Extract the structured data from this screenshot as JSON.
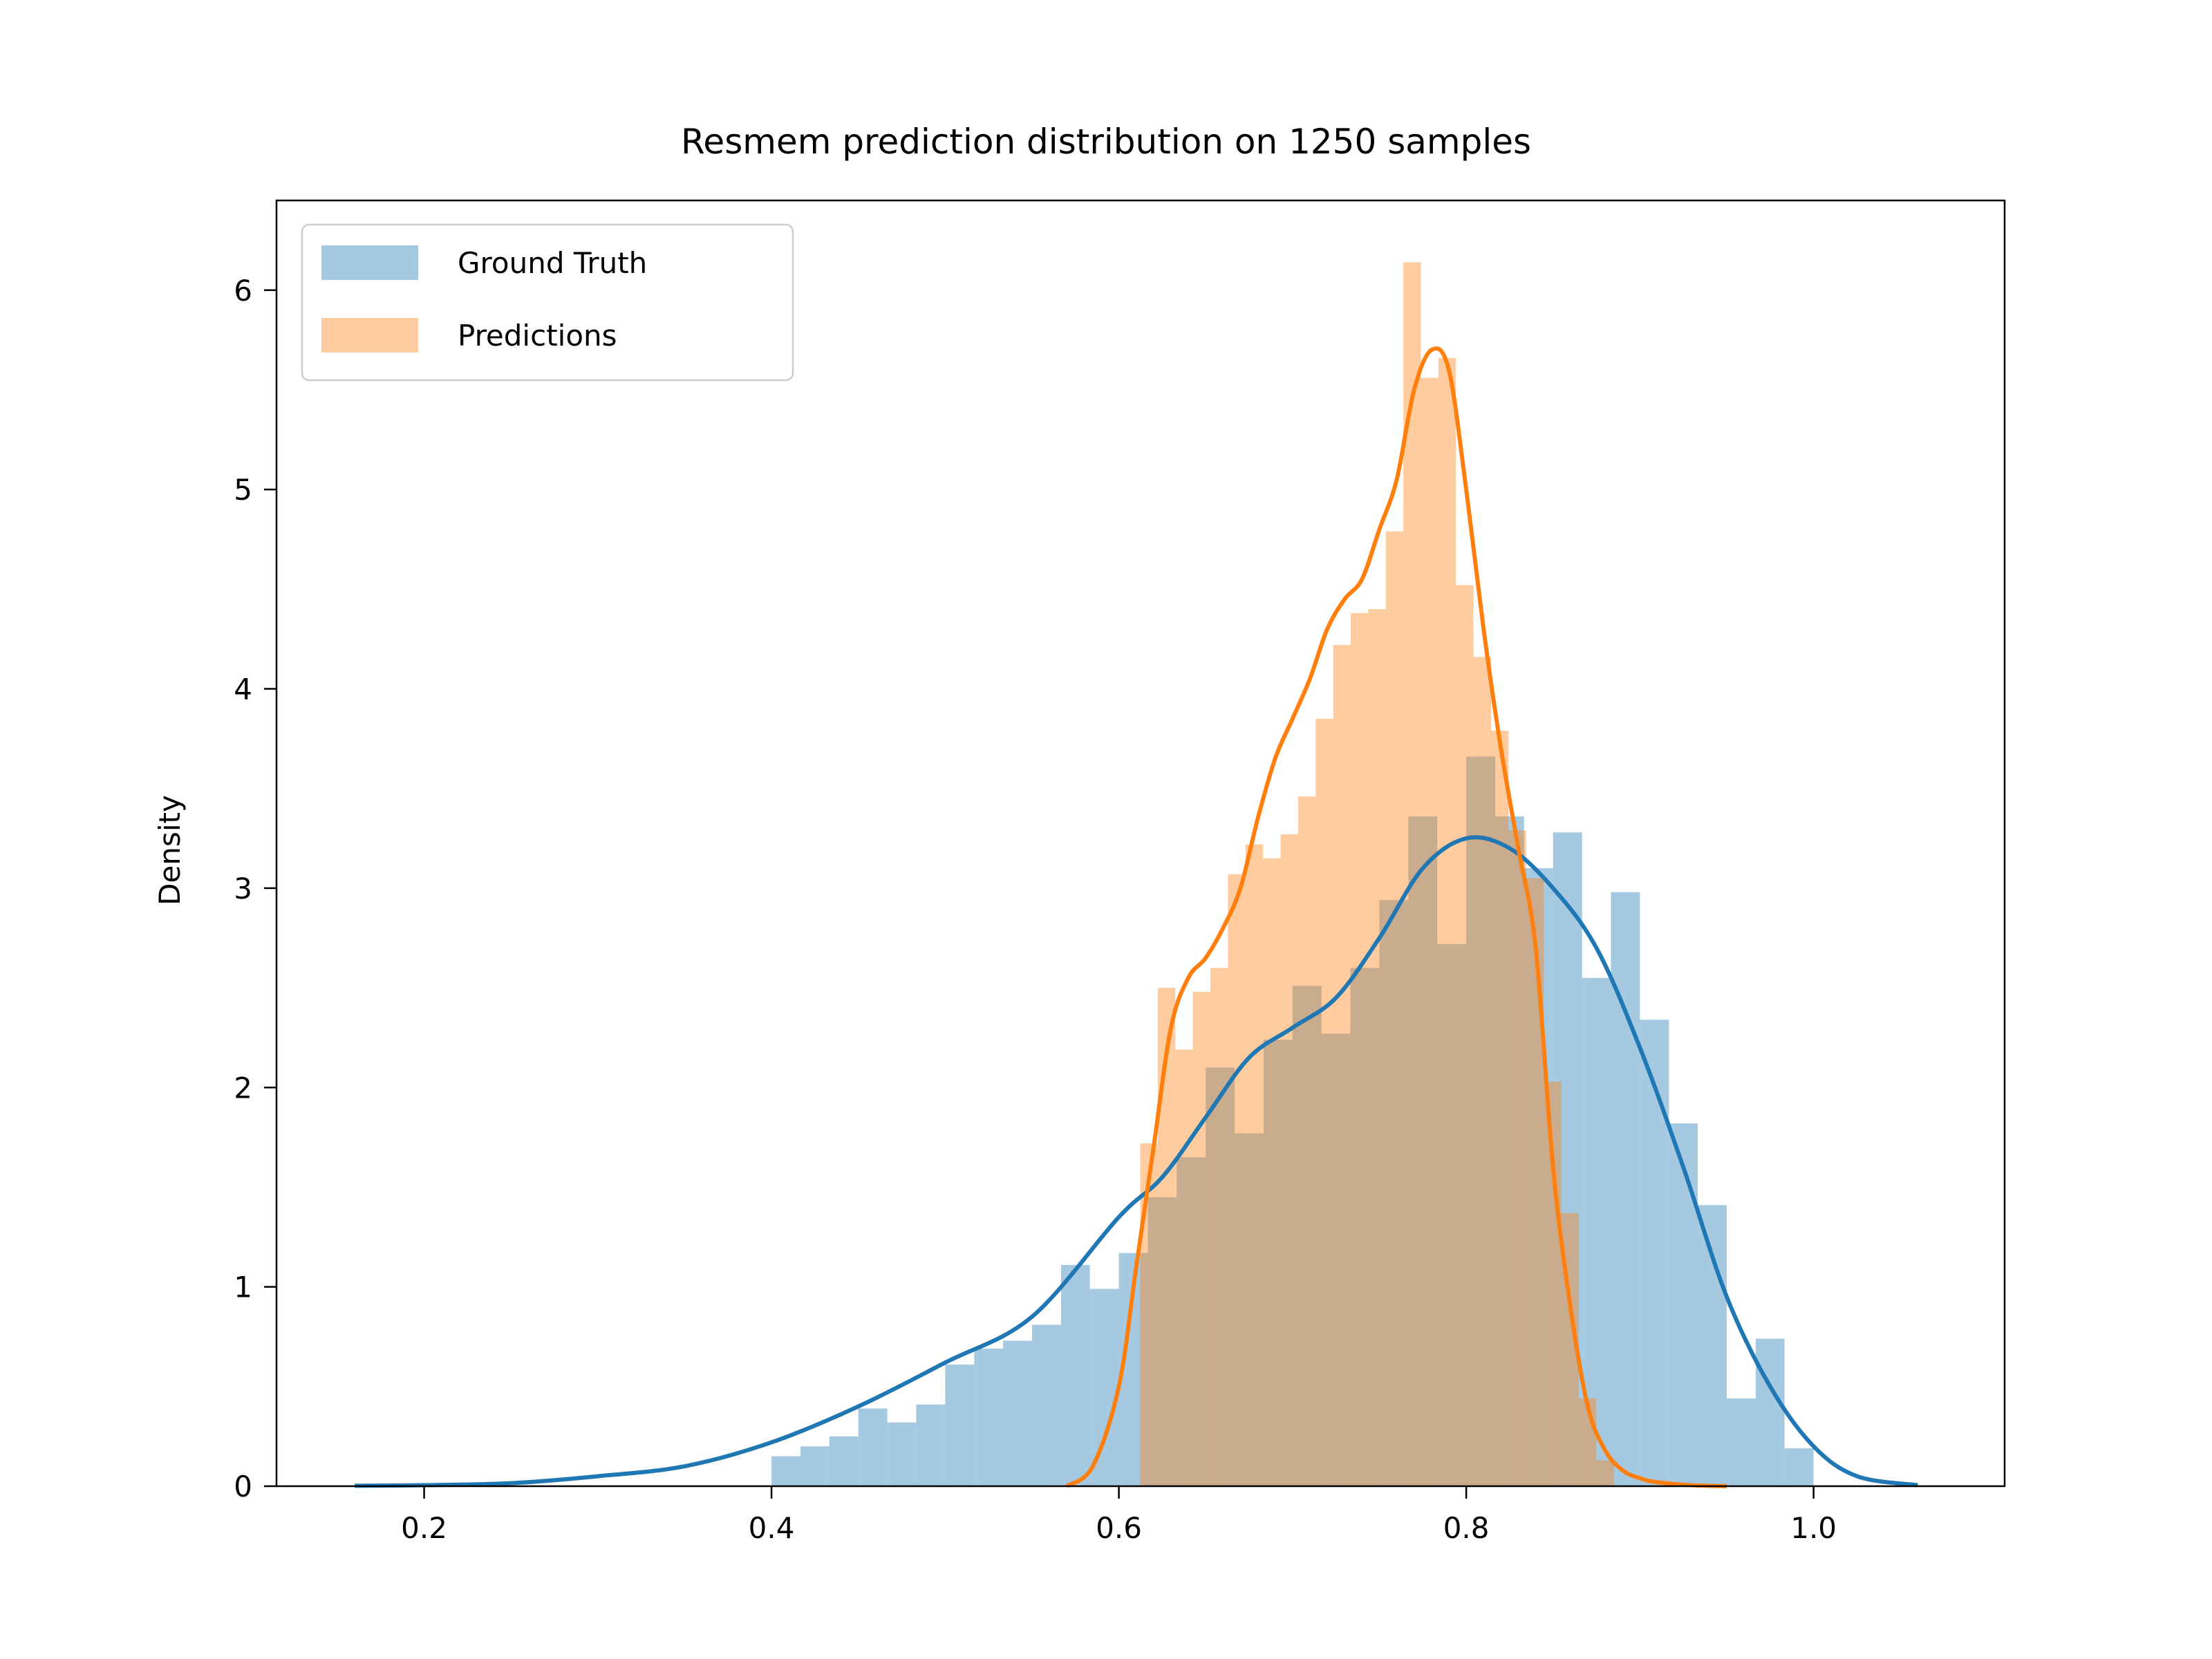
{
  "chart_data": {
    "type": "histogram",
    "title": "Resmem prediction distribution on 1250 samples",
    "xlabel": "",
    "ylabel": "Density",
    "xlim": [
      0.115,
      1.11
    ],
    "ylim": [
      0,
      6.45
    ],
    "xticks": [
      0.2,
      0.4,
      0.6,
      0.8,
      1.0
    ],
    "xtick_labels": [
      "0.2",
      "0.4",
      "0.6",
      "0.8",
      "1.0"
    ],
    "yticks": [
      0,
      1,
      2,
      3,
      4,
      5,
      6
    ],
    "ytick_labels": [
      "0",
      "1",
      "2",
      "3",
      "4",
      "5",
      "6"
    ],
    "grid": false,
    "legend_position": "upper-left",
    "series": [
      {
        "name": "Ground Truth",
        "color": "#1f77b4",
        "bin_edges": [
          0.4,
          0.4167,
          0.4333,
          0.45,
          0.4667,
          0.4833,
          0.5,
          0.5167,
          0.5333,
          0.55,
          0.5667,
          0.5833,
          0.6,
          0.6167,
          0.6333,
          0.65,
          0.6667,
          0.6833,
          0.7,
          0.7167,
          0.7333,
          0.75,
          0.7667,
          0.7833,
          0.8,
          0.8167,
          0.8333,
          0.85,
          0.8667,
          0.8833,
          0.9,
          0.9167,
          0.9333,
          0.95,
          0.9667,
          0.9833,
          1.0
        ],
        "heights": [
          0.15,
          0.2,
          0.25,
          0.39,
          0.32,
          0.41,
          0.61,
          0.69,
          0.73,
          0.81,
          1.11,
          0.99,
          1.17,
          1.45,
          1.65,
          2.1,
          1.77,
          2.24,
          2.51,
          2.27,
          2.6,
          2.94,
          3.36,
          2.72,
          3.66,
          3.36,
          3.1,
          3.28,
          2.55,
          2.98,
          2.34,
          1.82,
          1.41,
          0.44,
          0.74,
          0.19
        ]
      },
      {
        "name": "Predictions",
        "color": "#ff7f0e",
        "bin_edges": [
          0.6123,
          0.6224,
          0.6325,
          0.6426,
          0.6527,
          0.6628,
          0.6729,
          0.683,
          0.6931,
          0.7032,
          0.7133,
          0.7234,
          0.7335,
          0.7436,
          0.7537,
          0.7638,
          0.7739,
          0.784,
          0.7941,
          0.8042,
          0.8143,
          0.8244,
          0.8345,
          0.8446,
          0.8547,
          0.8648,
          0.8749,
          0.885
        ],
        "heights": [
          1.72,
          2.5,
          2.19,
          2.48,
          2.6,
          3.07,
          3.22,
          3.15,
          3.27,
          3.46,
          3.85,
          4.22,
          4.38,
          4.4,
          4.79,
          6.14,
          5.56,
          5.66,
          4.52,
          4.16,
          3.79,
          3.29,
          3.05,
          2.03,
          1.37,
          0.44,
          0.13
        ]
      }
    ],
    "kde": [
      {
        "name": "Ground Truth",
        "color": "#1f77b4",
        "x": [
          0.16,
          0.2,
          0.25,
          0.3,
          0.35,
          0.4,
          0.45,
          0.5,
          0.55,
          0.6,
          0.625,
          0.65,
          0.675,
          0.7,
          0.725,
          0.75,
          0.775,
          0.8,
          0.825,
          0.85,
          0.875,
          0.9,
          0.925,
          0.95,
          0.975,
          1.0,
          1.025,
          1.06
        ],
        "y": [
          0.002,
          0.005,
          0.015,
          0.05,
          0.1,
          0.22,
          0.4,
          0.62,
          0.85,
          1.35,
          1.55,
          1.85,
          2.15,
          2.3,
          2.45,
          2.75,
          3.1,
          3.25,
          3.2,
          3.0,
          2.7,
          2.2,
          1.6,
          0.95,
          0.5,
          0.2,
          0.05,
          0.005
        ]
      },
      {
        "name": "Predictions",
        "color": "#ff7f0e",
        "x": [
          0.57,
          0.585,
          0.6,
          0.61,
          0.62,
          0.63,
          0.64,
          0.65,
          0.66,
          0.67,
          0.68,
          0.69,
          0.7,
          0.71,
          0.72,
          0.73,
          0.74,
          0.75,
          0.76,
          0.77,
          0.78,
          0.79,
          0.8,
          0.81,
          0.82,
          0.83,
          0.84,
          0.85,
          0.86,
          0.87,
          0.88,
          0.89,
          0.9,
          0.91,
          0.93,
          0.95
        ],
        "y": [
          0.0,
          0.1,
          0.5,
          1.1,
          1.7,
          2.3,
          2.55,
          2.65,
          2.8,
          3.0,
          3.35,
          3.65,
          3.85,
          4.05,
          4.3,
          4.45,
          4.55,
          4.8,
          5.05,
          5.5,
          5.7,
          5.6,
          5.0,
          4.3,
          3.7,
          3.2,
          2.7,
          1.6,
          0.9,
          0.4,
          0.18,
          0.08,
          0.04,
          0.02,
          0.005,
          0.0
        ]
      }
    ]
  }
}
